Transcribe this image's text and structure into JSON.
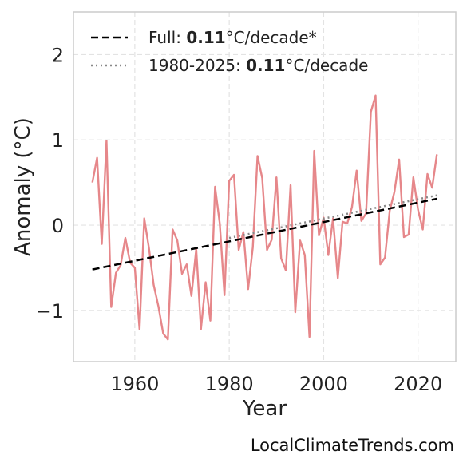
{
  "chart_data": {
    "type": "line",
    "title": "",
    "xlabel": "Year",
    "ylabel": "Anomaly (°C)",
    "xlim": [
      1947,
      2028
    ],
    "ylim": [
      -1.6,
      2.5
    ],
    "xticks": [
      1960,
      1980,
      2000,
      2020
    ],
    "yticks": [
      -1,
      0,
      1,
      2
    ],
    "xtick_labels": [
      "1960",
      "1980",
      "2000",
      "2020"
    ],
    "ytick_labels": [
      "−1",
      "0",
      "1",
      "2"
    ],
    "grid": true,
    "legend_position": "top-left",
    "series": [
      {
        "kind": "anomaly",
        "color": "#e6878a",
        "style": "solid",
        "x": [
          1951,
          1952,
          1953,
          1954,
          1955,
          1956,
          1957,
          1958,
          1959,
          1960,
          1961,
          1962,
          1963,
          1964,
          1965,
          1966,
          1967,
          1968,
          1969,
          1970,
          1971,
          1972,
          1973,
          1974,
          1975,
          1976,
          1977,
          1978,
          1979,
          1980,
          1981,
          1982,
          1983,
          1984,
          1985,
          1986,
          1987,
          1988,
          1989,
          1990,
          1991,
          1992,
          1993,
          1994,
          1995,
          1996,
          1997,
          1998,
          1999,
          2000,
          2001,
          2002,
          2003,
          2004,
          2005,
          2006,
          2007,
          2008,
          2009,
          2010,
          2011,
          2012,
          2013,
          2014,
          2015,
          2016,
          2017,
          2018,
          2019,
          2020,
          2021,
          2022,
          2023,
          2024
        ],
        "y": [
          0.5,
          0.79,
          -0.22,
          0.99,
          -0.96,
          -0.56,
          -0.47,
          -0.15,
          -0.44,
          -0.5,
          -1.22,
          0.08,
          -0.27,
          -0.7,
          -0.95,
          -1.27,
          -1.34,
          -0.05,
          -0.18,
          -0.57,
          -0.46,
          -0.83,
          -0.28,
          -1.22,
          -0.67,
          -1.12,
          0.45,
          0.02,
          -0.82,
          0.52,
          0.59,
          -0.29,
          -0.08,
          -0.75,
          -0.26,
          0.81,
          0.55,
          -0.29,
          -0.17,
          0.56,
          -0.39,
          -0.53,
          0.47,
          -1.02,
          -0.18,
          -0.35,
          -1.31,
          0.87,
          -0.12,
          0.09,
          -0.35,
          0.08,
          -0.62,
          0.04,
          0.02,
          0.21,
          0.64,
          0.05,
          0.14,
          1.33,
          1.52,
          -0.46,
          -0.38,
          0.17,
          0.39,
          0.77,
          -0.14,
          -0.11,
          0.56,
          0.18,
          -0.05,
          0.6,
          0.44,
          0.83
        ]
      },
      {
        "name": "Full",
        "rate": "0.11",
        "unit": "°C/decade*",
        "color": "#000000",
        "style": "dashed",
        "x": [
          1951,
          2024
        ],
        "y": [
          -0.52,
          0.31
        ]
      },
      {
        "name": "1980-2025",
        "rate": "0.11",
        "unit": "°C/decade",
        "color": "#888888",
        "style": "dotted",
        "x": [
          1980,
          2024
        ],
        "y": [
          -0.15,
          0.35
        ]
      }
    ]
  },
  "credit": "LocalClimateTrends.com"
}
